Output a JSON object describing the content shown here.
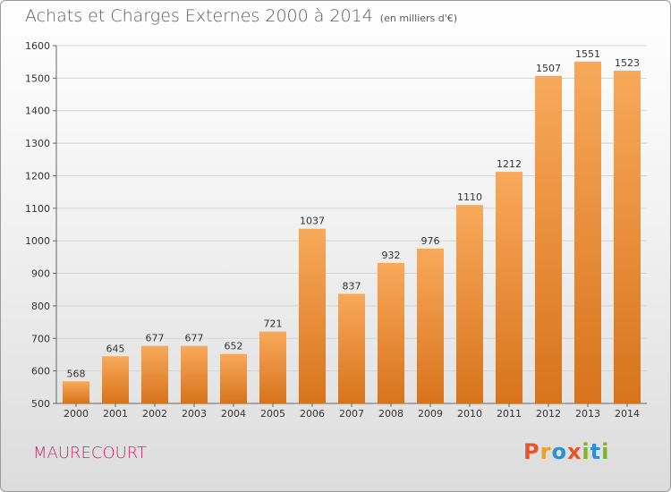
{
  "chart_data": {
    "type": "bar",
    "title": "Achats et Charges Externes 2000 à 2014",
    "subtitle": "(en milliers d'€)",
    "xlabel": "",
    "ylabel": "",
    "categories": [
      "2000",
      "2001",
      "2002",
      "2003",
      "2004",
      "2005",
      "2006",
      "2007",
      "2008",
      "2009",
      "2010",
      "2011",
      "2012",
      "2013",
      "2014"
    ],
    "values": [
      568,
      645,
      677,
      677,
      652,
      721,
      1037,
      837,
      932,
      976,
      1110,
      1212,
      1507,
      1551,
      1523
    ],
    "ylim": [
      500,
      1600
    ],
    "yticks": [
      500,
      600,
      700,
      800,
      900,
      1000,
      1100,
      1200,
      1300,
      1400,
      1500,
      1600
    ],
    "grid": true,
    "bar_color": "#f08c2c"
  },
  "commune": "MAURECOURT",
  "brand": {
    "letters": [
      "P",
      "r",
      "o",
      "x",
      "i",
      "t",
      "i"
    ],
    "colors": [
      "#e8542a",
      "#f0a020",
      "#2d8fd6",
      "#e8542a",
      "#7ab52a",
      "#2d8fd6",
      "#7ab52a"
    ]
  }
}
